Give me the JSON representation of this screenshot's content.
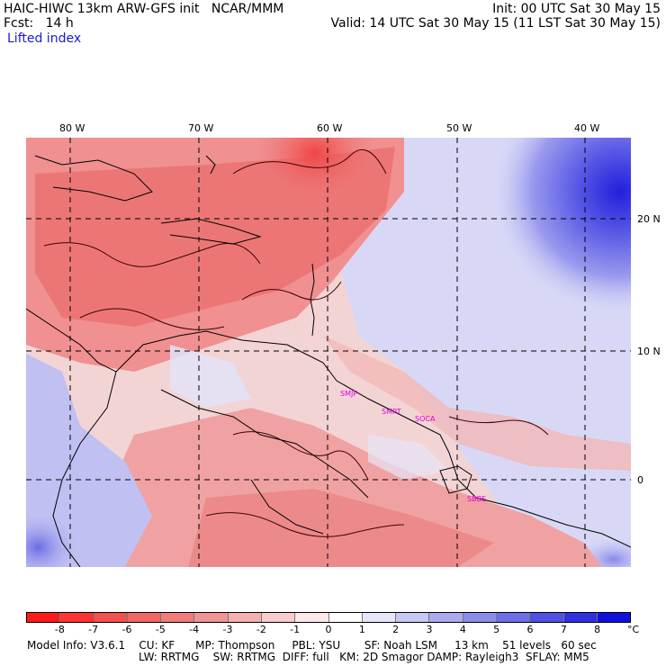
{
  "header": {
    "line1_left": "HAIC-HIWC 13km ARW-GFS init   NCAR/MMM",
    "line1_right": "Init: 00 UTC Sat 30 May 15",
    "line2_left": "Fcst:   14 h",
    "line2_right": "Valid: 14 UTC Sat 30 May 15 (11 LST Sat 30 May 15)",
    "field_name": "Lifted index"
  },
  "map": {
    "lon_labels": [
      "80 W",
      "70 W",
      "60 W",
      "50 W",
      "40 W"
    ],
    "lat_labels": [
      "20 N",
      "10 N",
      "0"
    ],
    "stations": [
      "SMJP",
      "SMPT",
      "SOCA",
      "SBBE"
    ]
  },
  "colorbar": {
    "labels": [
      "-8",
      "-7",
      "-6",
      "-5",
      "-4",
      "-3",
      "-2",
      "-1",
      "0",
      "1",
      "2",
      "3",
      "4",
      "5",
      "6",
      "7",
      "8"
    ],
    "unit": "°C",
    "colors": [
      "#ff1a1a",
      "#ff3333",
      "#f55050",
      "#f26666",
      "#f07c7c",
      "#f29494",
      "#f5b0b0",
      "#f8cccc",
      "#fce8e8",
      "#ffffff",
      "#e6e6fa",
      "#c8c8f5",
      "#aaaaef",
      "#8c8ceb",
      "#6e6ee8",
      "#5050e4",
      "#3030e0",
      "#1010dc"
    ]
  },
  "footer": {
    "line1": "Model Info: V3.6.1    CU: KF      MP: Thompson     PBL: YSU       SF: Noah LSM     13 km    51 levels   60 sec",
    "line2": "LW: RRTMG    SW: RRTMG  DIFF: full   KM: 2D Smagor DAMP: Rayleigh3  SFLAY: MM5"
  }
}
